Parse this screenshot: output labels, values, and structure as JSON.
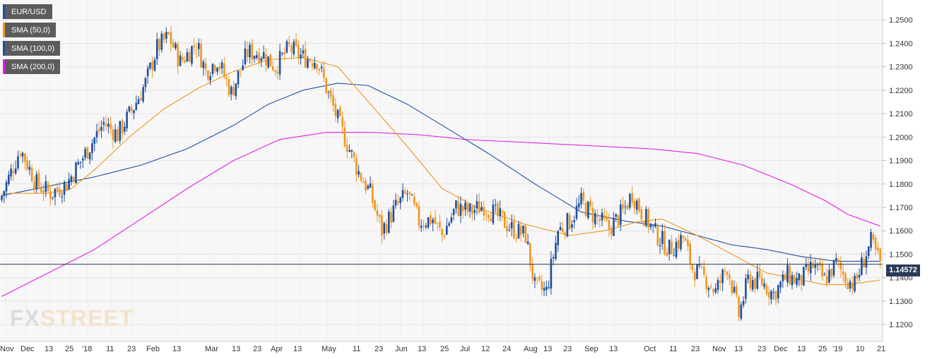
{
  "legend": [
    {
      "label": "EUR/USD",
      "color": "#1e4fa0"
    },
    {
      "label": "SMA (50,0)",
      "color": "#f0961e"
    },
    {
      "label": "SMA (100,0)",
      "color": "#1e4fa0"
    },
    {
      "label": "SMA (200,0)",
      "color": "#e61ee6"
    }
  ],
  "watermark": {
    "fx": "FX",
    "street": "STREET"
  },
  "chart_data": {
    "type": "candlestick",
    "symbol": "EUR/USD",
    "last_price": "1.14572",
    "last_price_value": 1.14572,
    "ylim": [
      1.116,
      1.2585
    ],
    "y_ticks": [
      "1.2500",
      "1.2400",
      "1.2300",
      "1.2200",
      "1.2100",
      "1.2000",
      "1.1900",
      "1.1800",
      "1.1700",
      "1.1600",
      "1.1500",
      "1.1400",
      "1.1300",
      "1.1200"
    ],
    "x_ticks": [
      "Nov",
      "Dec",
      "13",
      "25",
      "'18",
      "11",
      "23",
      "Feb",
      "13",
      "Mar",
      "13",
      "23",
      "Apr",
      "13",
      "May",
      "11",
      "23",
      "Jun",
      "13",
      "25",
      "Jul",
      "12",
      "24",
      "Aug",
      "13",
      "23",
      "Sep",
      "13",
      "Oct",
      "11",
      "23",
      "Nov",
      "13",
      "23",
      "Dec",
      "13",
      "25",
      "'19",
      "10",
      "21"
    ],
    "grid": true,
    "bullish_color": "#1e4fa0",
    "bearish_color": "#f0961e",
    "price_anchors": [
      [
        0,
        1.175
      ],
      [
        8,
        1.195
      ],
      [
        15,
        1.18
      ],
      [
        21,
        1.176
      ],
      [
        28,
        1.18
      ],
      [
        36,
        1.193
      ],
      [
        44,
        1.206
      ],
      [
        50,
        1.201
      ],
      [
        57,
        1.213
      ],
      [
        62,
        1.223
      ],
      [
        67,
        1.238
      ],
      [
        72,
        1.243
      ],
      [
        77,
        1.232
      ],
      [
        84,
        1.24
      ],
      [
        88,
        1.228
      ],
      [
        93,
        1.233
      ],
      [
        99,
        1.219
      ],
      [
        106,
        1.236
      ],
      [
        112,
        1.236
      ],
      [
        118,
        1.23
      ],
      [
        124,
        1.238
      ],
      [
        130,
        1.234
      ],
      [
        136,
        1.233
      ],
      [
        141,
        1.218
      ],
      [
        147,
        1.202
      ],
      [
        154,
        1.185
      ],
      [
        159,
        1.176
      ],
      [
        164,
        1.16
      ],
      [
        170,
        1.17
      ],
      [
        175,
        1.176
      ],
      [
        180,
        1.164
      ],
      [
        186,
        1.165
      ],
      [
        190,
        1.158
      ],
      [
        196,
        1.17
      ],
      [
        202,
        1.168
      ],
      [
        208,
        1.171
      ],
      [
        214,
        1.166
      ],
      [
        220,
        1.161
      ],
      [
        226,
        1.158
      ],
      [
        230,
        1.136
      ],
      [
        235,
        1.134
      ],
      [
        240,
        1.16
      ],
      [
        245,
        1.164
      ],
      [
        250,
        1.172
      ],
      [
        256,
        1.166
      ],
      [
        262,
        1.161
      ],
      [
        268,
        1.168
      ],
      [
        272,
        1.176
      ],
      [
        276,
        1.168
      ],
      [
        282,
        1.159
      ],
      [
        288,
        1.152
      ],
      [
        294,
        1.157
      ],
      [
        298,
        1.144
      ],
      [
        304,
        1.139
      ],
      [
        308,
        1.134
      ],
      [
        313,
        1.145
      ],
      [
        318,
        1.124
      ],
      [
        322,
        1.139
      ],
      [
        328,
        1.138
      ],
      [
        333,
        1.133
      ],
      [
        339,
        1.141
      ],
      [
        344,
        1.138
      ],
      [
        350,
        1.145
      ],
      [
        355,
        1.139
      ],
      [
        360,
        1.146
      ],
      [
        364,
        1.14
      ],
      [
        368,
        1.137
      ],
      [
        372,
        1.148
      ],
      [
        375,
        1.155
      ],
      [
        379,
        1.146
      ]
    ],
    "sma50_anchors": [
      [
        0,
        1.176
      ],
      [
        20,
        1.176
      ],
      [
        30,
        1.178
      ],
      [
        40,
        1.186
      ],
      [
        55,
        1.2
      ],
      [
        70,
        1.212
      ],
      [
        85,
        1.221
      ],
      [
        100,
        1.228
      ],
      [
        115,
        1.233
      ],
      [
        130,
        1.234
      ],
      [
        145,
        1.23
      ],
      [
        160,
        1.213
      ],
      [
        175,
        1.196
      ],
      [
        190,
        1.178
      ],
      [
        205,
        1.17
      ],
      [
        225,
        1.163
      ],
      [
        245,
        1.158
      ],
      [
        260,
        1.16
      ],
      [
        275,
        1.164
      ],
      [
        285,
        1.165
      ],
      [
        300,
        1.158
      ],
      [
        315,
        1.15
      ],
      [
        330,
        1.142
      ],
      [
        345,
        1.139
      ],
      [
        355,
        1.137
      ],
      [
        365,
        1.137
      ],
      [
        379,
        1.139
      ]
    ],
    "sma100_anchors": [
      [
        0,
        1.175
      ],
      [
        20,
        1.179
      ],
      [
        40,
        1.183
      ],
      [
        60,
        1.188
      ],
      [
        80,
        1.195
      ],
      [
        100,
        1.205
      ],
      [
        115,
        1.214
      ],
      [
        130,
        1.22
      ],
      [
        145,
        1.223
      ],
      [
        158,
        1.222
      ],
      [
        175,
        1.214
      ],
      [
        190,
        1.205
      ],
      [
        210,
        1.193
      ],
      [
        230,
        1.18
      ],
      [
        250,
        1.168
      ],
      [
        270,
        1.164
      ],
      [
        285,
        1.162
      ],
      [
        300,
        1.158
      ],
      [
        315,
        1.154
      ],
      [
        330,
        1.152
      ],
      [
        345,
        1.149
      ],
      [
        360,
        1.147
      ],
      [
        379,
        1.147
      ]
    ],
    "sma200_anchors": [
      [
        0,
        1.132
      ],
      [
        20,
        1.142
      ],
      [
        40,
        1.152
      ],
      [
        60,
        1.165
      ],
      [
        80,
        1.178
      ],
      [
        100,
        1.19
      ],
      [
        120,
        1.199
      ],
      [
        140,
        1.202
      ],
      [
        160,
        1.202
      ],
      [
        180,
        1.201
      ],
      [
        200,
        1.199
      ],
      [
        220,
        1.198
      ],
      [
        240,
        1.197
      ],
      [
        260,
        1.196
      ],
      [
        280,
        1.195
      ],
      [
        300,
        1.193
      ],
      [
        320,
        1.188
      ],
      [
        340,
        1.18
      ],
      [
        355,
        1.173
      ],
      [
        365,
        1.167
      ],
      [
        379,
        1.162
      ]
    ]
  }
}
